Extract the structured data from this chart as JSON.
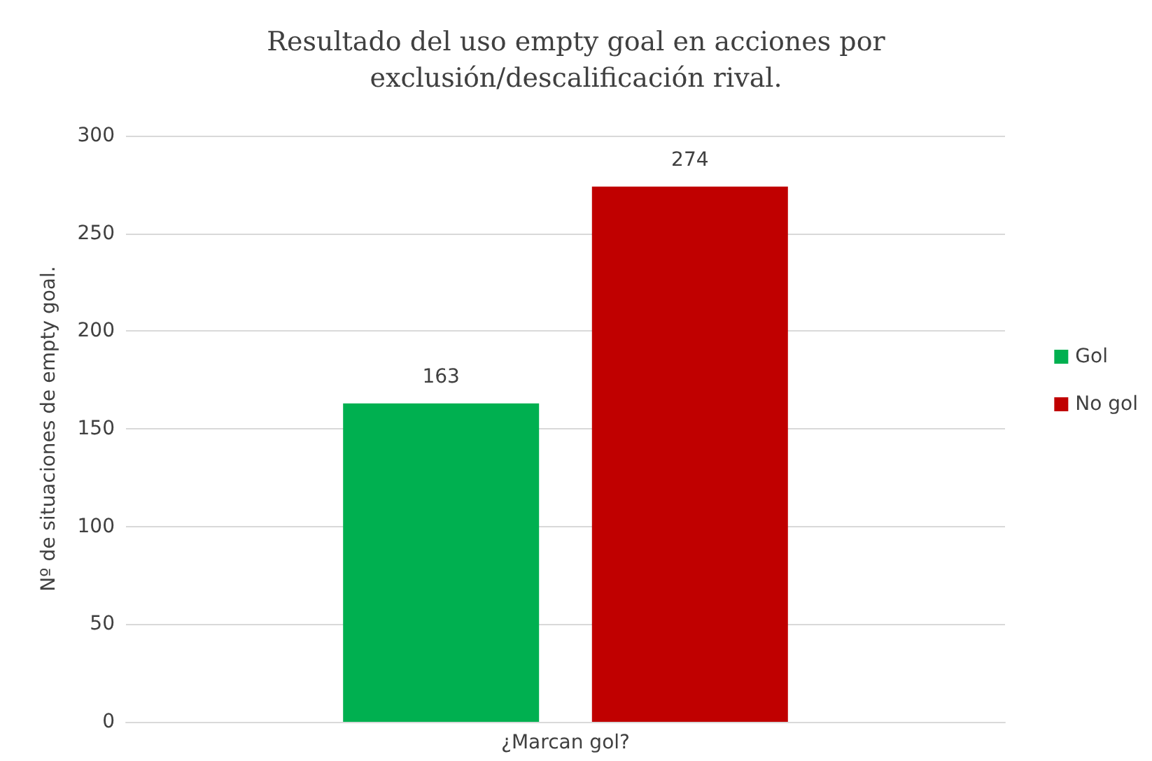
{
  "chart_data": {
    "type": "bar",
    "title": "Resultado del uso empty goal en acciones por\nexclusión/descalificación rival.",
    "ylabel": "Nº de situaciones de empty goal.",
    "categories": [
      "¿Marcan gol?"
    ],
    "series": [
      {
        "name": "Gol",
        "color": "#00b050",
        "values": [
          163
        ]
      },
      {
        "name": "No gol",
        "color": "#c00000",
        "values": [
          274
        ]
      }
    ],
    "ylim": [
      0,
      300
    ],
    "yticks": [
      0,
      50,
      100,
      150,
      200,
      250,
      300
    ],
    "grid": "y",
    "legend": "right",
    "data_labels": true
  }
}
